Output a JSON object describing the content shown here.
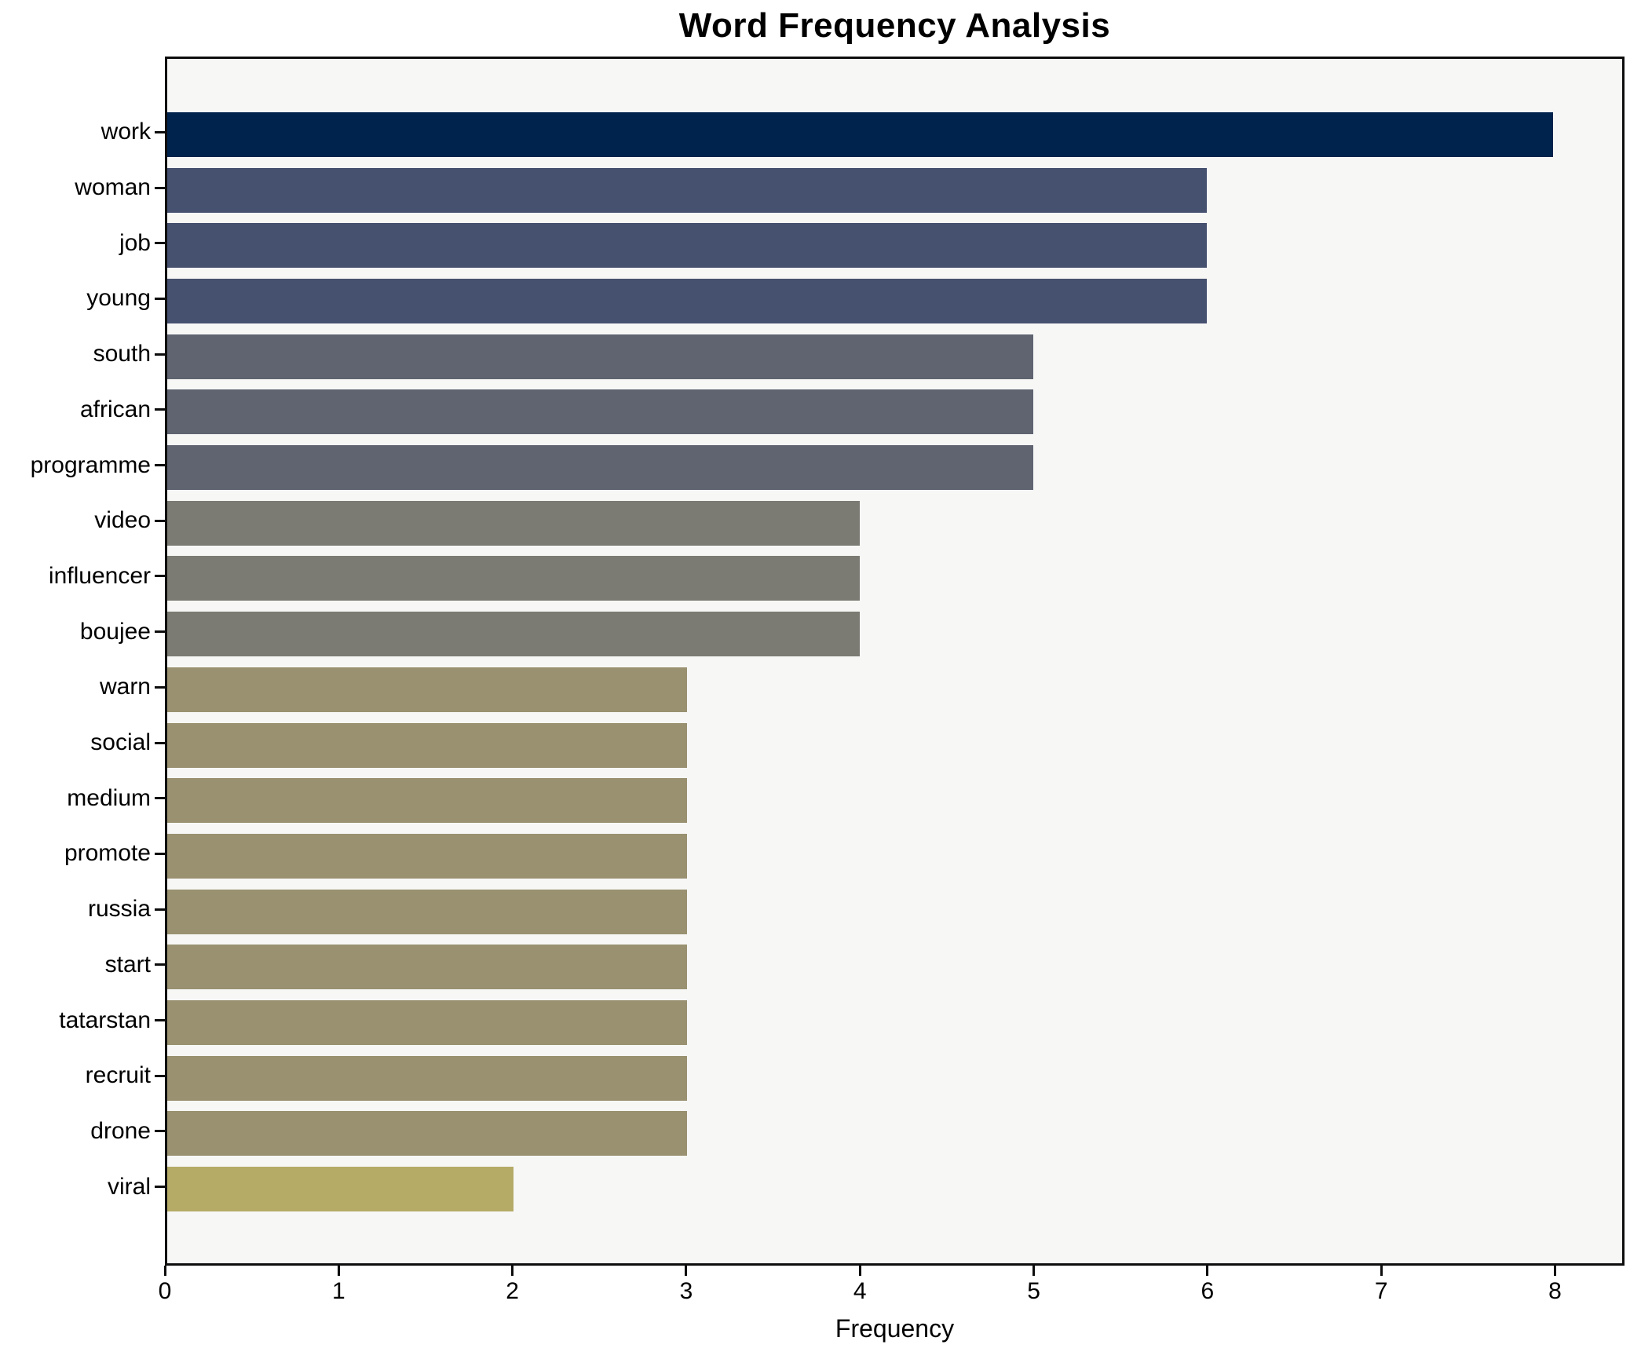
{
  "chart_data": {
    "type": "bar",
    "orientation": "horizontal",
    "title": "Word Frequency Analysis",
    "xlabel": "Frequency",
    "ylabel": "",
    "categories": [
      "work",
      "woman",
      "job",
      "young",
      "south",
      "african",
      "programme",
      "video",
      "influencer",
      "boujee",
      "warn",
      "social",
      "medium",
      "promote",
      "russia",
      "start",
      "tatarstan",
      "recruit",
      "drone",
      "viral"
    ],
    "values": [
      8,
      6,
      6,
      6,
      5,
      5,
      5,
      4,
      4,
      4,
      3,
      3,
      3,
      3,
      3,
      3,
      3,
      3,
      3,
      2
    ],
    "bar_colors": [
      "#00234d",
      "#46506f",
      "#46506f",
      "#46506f",
      "#5f6470",
      "#5f6470",
      "#5f6470",
      "#7b7b73",
      "#7b7b73",
      "#7b7b73",
      "#999170",
      "#999170",
      "#999170",
      "#999170",
      "#999170",
      "#999170",
      "#999170",
      "#999170",
      "#999170",
      "#b5ab67"
    ],
    "x_ticks": [
      0,
      1,
      2,
      3,
      4,
      5,
      6,
      7,
      8
    ],
    "xlim": [
      0,
      8.4
    ],
    "grid": false,
    "legend": null,
    "plot_background": "#f7f7f6",
    "spine_color": "#0d0d0d",
    "bar_gap_color": "#f7f7f6"
  }
}
